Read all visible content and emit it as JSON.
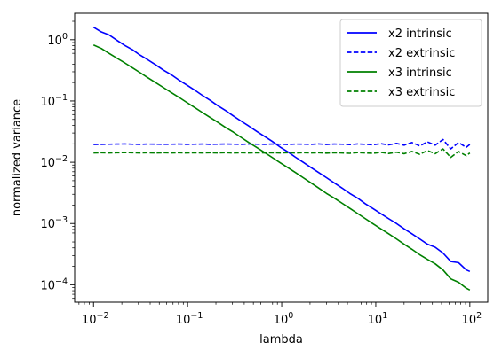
{
  "chart_data": {
    "type": "line",
    "title": "",
    "xlabel": "lambda",
    "ylabel": "normalized variance",
    "xscale": "log",
    "yscale": "log",
    "xlim": [
      0.0063,
      155
    ],
    "ylim": [
      5.2e-05,
      2.7
    ],
    "grid": false,
    "legend_position": "top-right",
    "x_ticks": [
      {
        "value": 0.01,
        "base": "10",
        "exp": "−2"
      },
      {
        "value": 0.1,
        "base": "10",
        "exp": "−1"
      },
      {
        "value": 1,
        "base": "10",
        "exp": "0"
      },
      {
        "value": 10,
        "base": "10",
        "exp": "1"
      },
      {
        "value": 100,
        "base": "10",
        "exp": "2"
      }
    ],
    "y_ticks": [
      {
        "value": 0.0001,
        "base": "10",
        "exp": "−4"
      },
      {
        "value": 0.001,
        "base": "10",
        "exp": "−3"
      },
      {
        "value": 0.01,
        "base": "10",
        "exp": "−2"
      },
      {
        "value": 0.1,
        "base": "10",
        "exp": "−1"
      },
      {
        "value": 1,
        "base": "10",
        "exp": "0"
      }
    ],
    "series": [
      {
        "name": "x2 intrinsic",
        "color": "#0000ff",
        "dash": "solid",
        "x": [
          0.01,
          0.0121,
          0.0146,
          0.0177,
          0.0214,
          0.0258,
          0.0313,
          0.0378,
          0.0457,
          0.0553,
          0.0668,
          0.0808,
          0.0977,
          0.118,
          0.143,
          0.173,
          0.209,
          0.253,
          0.306,
          0.37,
          0.447,
          0.541,
          0.654,
          0.791,
          0.957,
          1.16,
          1.4,
          1.69,
          2.05,
          2.47,
          2.99,
          3.62,
          4.37,
          5.29,
          6.4,
          7.74,
          9.36,
          11.3,
          13.7,
          16.6,
          20.0,
          24.2,
          29.3,
          35.4,
          42.8,
          51.8,
          62.7,
          75.8,
          91.6,
          100
        ],
        "y": [
          1.6,
          1.34,
          1.2,
          0.98,
          0.81,
          0.69,
          0.56,
          0.47,
          0.39,
          0.32,
          0.27,
          0.22,
          0.183,
          0.152,
          0.124,
          0.103,
          0.084,
          0.07,
          0.057,
          0.047,
          0.039,
          0.032,
          0.0265,
          0.022,
          0.0178,
          0.0148,
          0.0121,
          0.01,
          0.0082,
          0.0068,
          0.0056,
          0.0046,
          0.0038,
          0.0031,
          0.0026,
          0.0021,
          0.00175,
          0.00145,
          0.0012,
          0.001,
          0.00082,
          0.00068,
          0.00056,
          0.00046,
          0.00041,
          0.00033,
          0.00024,
          0.00023,
          0.000175,
          0.000165
        ]
      },
      {
        "name": "x2 extrinsic",
        "color": "#0000ff",
        "dash": "dashed",
        "x": [
          0.01,
          0.0121,
          0.0146,
          0.0177,
          0.0214,
          0.0258,
          0.0313,
          0.0378,
          0.0457,
          0.0553,
          0.0668,
          0.0808,
          0.0977,
          0.118,
          0.143,
          0.173,
          0.209,
          0.253,
          0.306,
          0.37,
          0.447,
          0.541,
          0.654,
          0.791,
          0.957,
          1.16,
          1.4,
          1.69,
          2.05,
          2.47,
          2.99,
          3.62,
          4.37,
          5.29,
          6.4,
          7.74,
          9.36,
          11.3,
          13.7,
          16.6,
          20.0,
          24.2,
          29.3,
          35.4,
          42.8,
          51.8,
          62.7,
          75.8,
          91.6,
          100
        ],
        "y": [
          0.0195,
          0.0196,
          0.0197,
          0.0198,
          0.0199,
          0.0197,
          0.0196,
          0.0198,
          0.0197,
          0.0196,
          0.0197,
          0.0198,
          0.0196,
          0.0197,
          0.0198,
          0.0196,
          0.0197,
          0.0198,
          0.0197,
          0.0196,
          0.0198,
          0.0197,
          0.0196,
          0.0198,
          0.0197,
          0.0195,
          0.0198,
          0.0197,
          0.0196,
          0.0199,
          0.0195,
          0.0198,
          0.0197,
          0.0194,
          0.0199,
          0.0196,
          0.0193,
          0.0201,
          0.0192,
          0.0203,
          0.019,
          0.021,
          0.0185,
          0.0215,
          0.019,
          0.0235,
          0.0165,
          0.021,
          0.0175,
          0.0195
        ]
      },
      {
        "name": "x3 intrinsic",
        "color": "#008000",
        "dash": "solid",
        "x": [
          0.01,
          0.0121,
          0.0146,
          0.0177,
          0.0214,
          0.0258,
          0.0313,
          0.0378,
          0.0457,
          0.0553,
          0.0668,
          0.0808,
          0.0977,
          0.118,
          0.143,
          0.173,
          0.209,
          0.253,
          0.306,
          0.37,
          0.447,
          0.541,
          0.654,
          0.791,
          0.957,
          1.16,
          1.4,
          1.69,
          2.05,
          2.47,
          2.99,
          3.62,
          4.37,
          5.29,
          6.4,
          7.74,
          9.36,
          11.3,
          13.7,
          16.6,
          20.0,
          24.2,
          29.3,
          35.4,
          42.8,
          51.8,
          62.7,
          75.8,
          91.6,
          100
        ],
        "y": [
          0.82,
          0.72,
          0.6,
          0.5,
          0.42,
          0.35,
          0.29,
          0.24,
          0.2,
          0.166,
          0.138,
          0.115,
          0.095,
          0.079,
          0.065,
          0.054,
          0.045,
          0.037,
          0.031,
          0.0255,
          0.021,
          0.0175,
          0.0145,
          0.012,
          0.0099,
          0.0082,
          0.0068,
          0.0056,
          0.0046,
          0.0038,
          0.0031,
          0.0026,
          0.00215,
          0.00177,
          0.00146,
          0.0012,
          0.00099,
          0.00082,
          0.00068,
          0.00056,
          0.00046,
          0.00038,
          0.00031,
          0.00026,
          0.00022,
          0.000175,
          0.000125,
          0.00011,
          8.8e-05,
          8.2e-05
        ]
      },
      {
        "name": "x3 extrinsic",
        "color": "#008000",
        "dash": "dashed",
        "x": [
          0.01,
          0.0121,
          0.0146,
          0.0177,
          0.0214,
          0.0258,
          0.0313,
          0.0378,
          0.0457,
          0.0553,
          0.0668,
          0.0808,
          0.0977,
          0.118,
          0.143,
          0.173,
          0.209,
          0.253,
          0.306,
          0.37,
          0.447,
          0.541,
          0.654,
          0.791,
          0.957,
          1.16,
          1.4,
          1.69,
          2.05,
          2.47,
          2.99,
          3.62,
          4.37,
          5.29,
          6.4,
          7.74,
          9.36,
          11.3,
          13.7,
          16.6,
          20.0,
          24.2,
          29.3,
          35.4,
          42.8,
          51.8,
          62.7,
          75.8,
          91.6,
          100
        ],
        "y": [
          0.0142,
          0.0143,
          0.0142,
          0.0143,
          0.0144,
          0.0143,
          0.0142,
          0.0143,
          0.0142,
          0.0143,
          0.0142,
          0.0143,
          0.0142,
          0.0143,
          0.0142,
          0.0143,
          0.0142,
          0.0143,
          0.0142,
          0.0143,
          0.0142,
          0.0143,
          0.0142,
          0.0143,
          0.0142,
          0.0143,
          0.0142,
          0.0143,
          0.0142,
          0.0143,
          0.0141,
          0.0143,
          0.0142,
          0.014,
          0.0144,
          0.0142,
          0.014,
          0.0145,
          0.0139,
          0.0146,
          0.0138,
          0.015,
          0.0135,
          0.0155,
          0.0138,
          0.0165,
          0.012,
          0.015,
          0.0128,
          0.0142
        ]
      }
    ]
  }
}
